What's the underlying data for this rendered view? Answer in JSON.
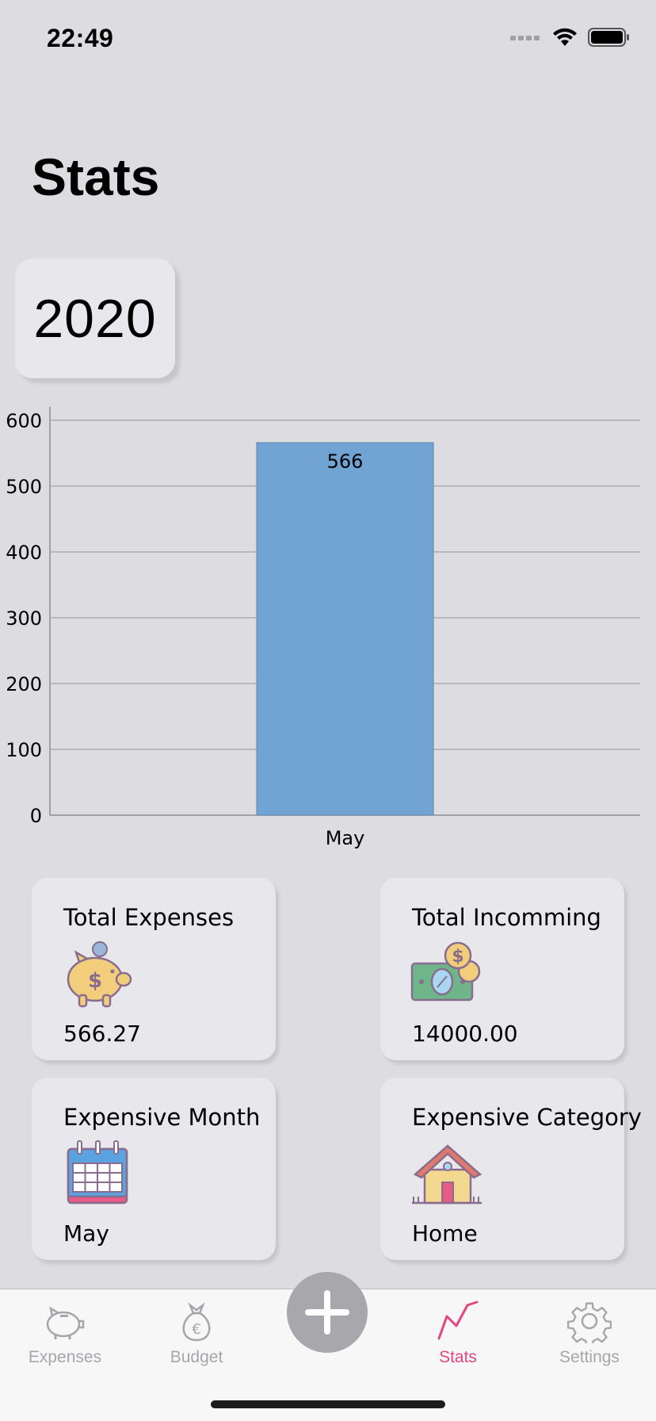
{
  "status": {
    "time": "22:49"
  },
  "page": {
    "title": "Stats"
  },
  "year": "2020",
  "chart_data": {
    "type": "bar",
    "categories": [
      "May"
    ],
    "values": [
      566
    ],
    "data_labels": [
      "566"
    ],
    "ylim": [
      0,
      600
    ],
    "yticks": [
      0,
      100,
      200,
      300,
      400,
      500,
      600
    ],
    "grid": true,
    "bar_color": "#72a4d3"
  },
  "cards": [
    {
      "title": "Total Expenses",
      "icon": "piggy-bank-icon",
      "value": "566.27"
    },
    {
      "title": "Total Incomming",
      "icon": "money-cash-icon",
      "value": "14000.00"
    },
    {
      "title": "Expensive Month",
      "icon": "calendar-icon",
      "value": "May"
    },
    {
      "title": "Expensive Category",
      "icon": "house-icon",
      "value": "Home"
    }
  ],
  "tabs": {
    "expenses": "Expenses",
    "budget": "Budget",
    "stats": "Stats",
    "settings": "Settings"
  },
  "colors": {
    "accent": "#e2457f",
    "inactive": "#a6a5aa",
    "background": "#dddce1"
  }
}
